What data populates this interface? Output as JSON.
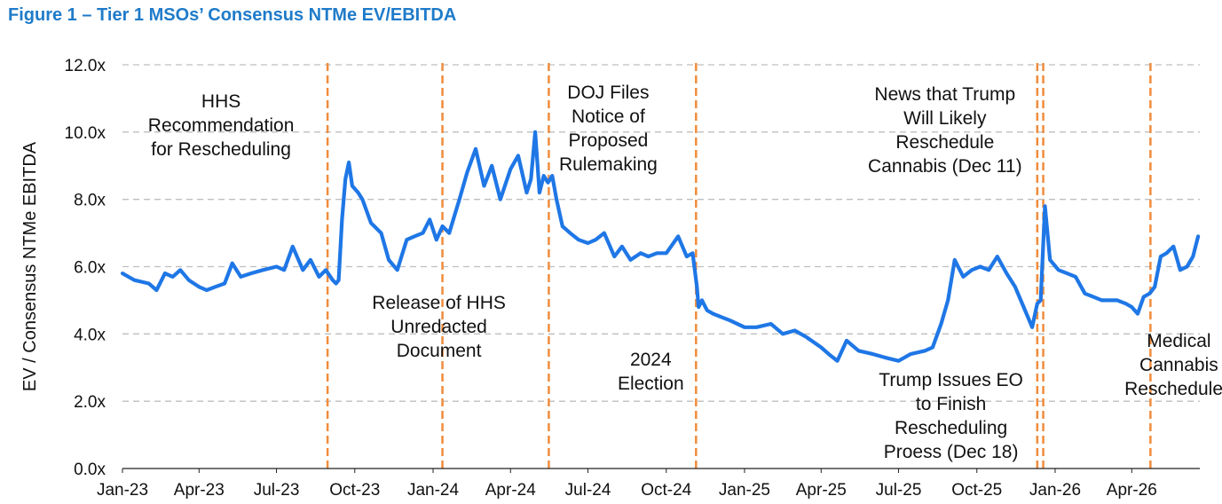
{
  "figure_title": "Figure 1 –  Tier 1 MSOs’ Consensus NTMe EV/EBITDA",
  "colors": {
    "title": "#1f7bc9",
    "series": "#1f77e6",
    "event_line": "#f08c3c",
    "grid": "#bfbfbf"
  },
  "chart_data": {
    "type": "line",
    "title": "Figure 1 –  Tier 1 MSOs’ Consensus NTMe EV/EBITDA",
    "ylabel": "EV / Consensus NTMe EBITDA",
    "xlabel": "",
    "ylim": [
      0,
      12
    ],
    "xlim": [
      "2023-01-01",
      "2026-06-20"
    ],
    "grid": true,
    "y_tick_labels": [
      "0.0x",
      "2.0x",
      "4.0x",
      "6.0x",
      "8.0x",
      "10.0x",
      "12.0x"
    ],
    "y_tick_values": [
      0,
      2,
      4,
      6,
      8,
      10,
      12
    ],
    "x_tick_labels": [
      "Jan-23",
      "Apr-23",
      "Jul-23",
      "Oct-23",
      "Jan-24",
      "Apr-24",
      "Jul-24",
      "Oct-24",
      "Jan-25",
      "Apr-25",
      "Jul-25",
      "Oct-25",
      "Jan-26",
      "Apr-26"
    ],
    "x_tick_values": [
      "2023-01-01",
      "2023-04-01",
      "2023-07-01",
      "2023-10-01",
      "2024-01-01",
      "2024-04-01",
      "2024-07-01",
      "2024-10-01",
      "2025-01-01",
      "2025-04-01",
      "2025-07-01",
      "2025-10-01",
      "2026-01-01",
      "2026-04-01"
    ],
    "series": [
      {
        "x": [
          "2023-01-01",
          "2023-01-15",
          "2023-02-01",
          "2023-02-10",
          "2023-02-20",
          "2023-03-01",
          "2023-03-10",
          "2023-03-20",
          "2023-04-01",
          "2023-04-10",
          "2023-04-20",
          "2023-05-01",
          "2023-05-10",
          "2023-05-20",
          "2023-06-01",
          "2023-06-15",
          "2023-07-01",
          "2023-07-10",
          "2023-07-20",
          "2023-08-01",
          "2023-08-10",
          "2023-08-20",
          "2023-08-28",
          "2023-09-05",
          "2023-09-09",
          "2023-09-12",
          "2023-09-16",
          "2023-09-20",
          "2023-09-24",
          "2023-09-28",
          "2023-10-05",
          "2023-10-10",
          "2023-10-20",
          "2023-11-01",
          "2023-11-10",
          "2023-11-20",
          "2023-12-01",
          "2023-12-10",
          "2023-12-20",
          "2023-12-28",
          "2024-01-05",
          "2024-01-12",
          "2024-01-20",
          "2024-02-01",
          "2024-02-10",
          "2024-02-20",
          "2024-03-01",
          "2024-03-10",
          "2024-03-20",
          "2024-04-01",
          "2024-04-10",
          "2024-04-20",
          "2024-04-25",
          "2024-04-30",
          "2024-05-05",
          "2024-05-10",
          "2024-05-15",
          "2024-05-20",
          "2024-05-25",
          "2024-06-01",
          "2024-06-10",
          "2024-06-20",
          "2024-07-01",
          "2024-07-10",
          "2024-07-20",
          "2024-08-01",
          "2024-08-10",
          "2024-08-20",
          "2024-09-01",
          "2024-09-10",
          "2024-09-20",
          "2024-10-01",
          "2024-10-15",
          "2024-10-25",
          "2024-11-01",
          "2024-11-06",
          "2024-11-08",
          "2024-11-12",
          "2024-11-18",
          "2024-11-25",
          "2024-12-05",
          "2024-12-15",
          "2025-01-01",
          "2025-01-15",
          "2025-02-01",
          "2025-02-15",
          "2025-03-01",
          "2025-03-15",
          "2025-04-01",
          "2025-04-10",
          "2025-04-20",
          "2025-05-01",
          "2025-05-15",
          "2025-06-01",
          "2025-06-15",
          "2025-07-01",
          "2025-07-15",
          "2025-08-01",
          "2025-08-10",
          "2025-08-20",
          "2025-08-28",
          "2025-09-05",
          "2025-09-15",
          "2025-09-25",
          "2025-10-05",
          "2025-10-15",
          "2025-10-25",
          "2025-11-05",
          "2025-11-15",
          "2025-11-25",
          "2025-12-05",
          "2025-12-11",
          "2025-12-15",
          "2025-12-20",
          "2025-12-26",
          "2026-01-05",
          "2026-01-15",
          "2026-01-25",
          "2026-02-05",
          "2026-02-15",
          "2026-02-25",
          "2026-03-05",
          "2026-03-15",
          "2026-03-25",
          "2026-04-01",
          "2026-04-08",
          "2026-04-15",
          "2026-04-22",
          "2026-04-28",
          "2026-05-05",
          "2026-05-12",
          "2026-05-20",
          "2026-05-28",
          "2026-06-05",
          "2026-06-12",
          "2026-06-18"
        ],
        "y": [
          5.8,
          5.6,
          5.5,
          5.3,
          5.8,
          5.7,
          5.9,
          5.6,
          5.4,
          5.3,
          5.4,
          5.5,
          6.1,
          5.7,
          5.8,
          5.9,
          6.0,
          5.9,
          6.6,
          5.9,
          6.2,
          5.7,
          5.9,
          5.6,
          5.5,
          5.6,
          7.4,
          8.6,
          9.1,
          8.4,
          8.2,
          8.0,
          7.3,
          7.0,
          6.2,
          5.9,
          6.8,
          6.9,
          7.0,
          7.4,
          6.8,
          7.2,
          7.0,
          8.0,
          8.8,
          9.5,
          8.4,
          9.0,
          8.0,
          8.9,
          9.3,
          8.2,
          8.6,
          10.0,
          8.2,
          8.7,
          8.5,
          8.7,
          8.0,
          7.2,
          7.0,
          6.8,
          6.7,
          6.8,
          7.0,
          6.3,
          6.6,
          6.2,
          6.4,
          6.3,
          6.4,
          6.4,
          6.9,
          6.3,
          6.4,
          5.4,
          4.8,
          5.0,
          4.7,
          4.6,
          4.5,
          4.4,
          4.2,
          4.2,
          4.3,
          4.0,
          4.1,
          3.9,
          3.6,
          3.4,
          3.2,
          3.8,
          3.5,
          3.4,
          3.3,
          3.2,
          3.4,
          3.5,
          3.6,
          4.3,
          5.0,
          6.2,
          5.7,
          5.9,
          6.0,
          5.9,
          6.3,
          5.8,
          5.4,
          4.8,
          4.2,
          4.9,
          5.0,
          7.8,
          6.2,
          5.9,
          5.8,
          5.7,
          5.2,
          5.1,
          5.0,
          5.0,
          5.0,
          4.9,
          4.8,
          4.6,
          5.1,
          5.2,
          5.4,
          6.3,
          6.4,
          6.6,
          5.9,
          6.0,
          6.3,
          6.9
        ]
      }
    ],
    "events": [
      {
        "date": "2023-08-30",
        "label": [
          "HHS",
          "Recommendation",
          "for Rescheduling"
        ]
      },
      {
        "date": "2024-01-12",
        "label": [
          "Release of HHS",
          "Unredacted",
          "Document"
        ]
      },
      {
        "date": "2024-05-16",
        "label": [
          "DOJ Files",
          "Notice of",
          "Proposed",
          "Rulemaking"
        ]
      },
      {
        "date": "2024-11-05",
        "label": [
          "2024",
          "Election"
        ]
      },
      {
        "date": "2025-12-11",
        "label": [
          "News that Trump",
          "Will Likely",
          "Reschedule",
          "Cannabis (Dec 11)"
        ]
      },
      {
        "date": "2025-12-18",
        "label": [
          "Trump Issues EO",
          "to Finish",
          "Rescheduling",
          "Proess (Dec 18)"
        ]
      },
      {
        "date": "2026-04-23",
        "label": [
          "Medical",
          "Cannabis",
          "Rescheduled"
        ]
      }
    ]
  }
}
